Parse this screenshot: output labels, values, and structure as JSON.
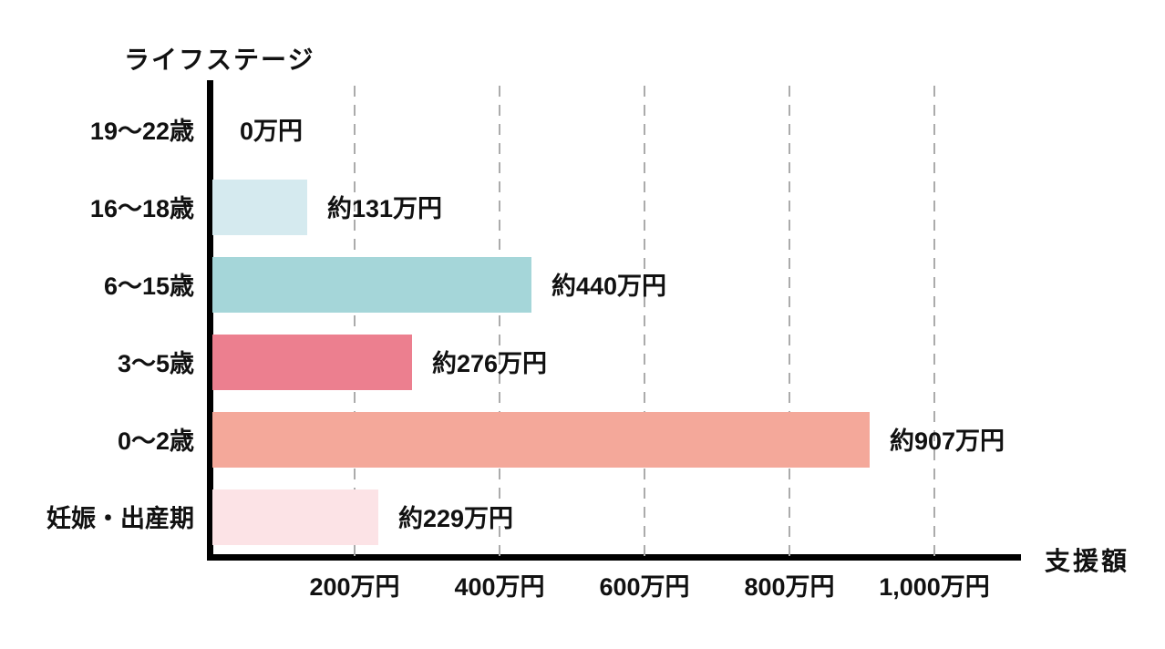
{
  "chart_data": {
    "type": "bar",
    "orientation": "horizontal",
    "title": "",
    "ylabel": "ライフステージ",
    "xlabel": "支援額",
    "categories": [
      "19〜22歳",
      "16〜18歳",
      "6〜15歳",
      "3〜5歳",
      "0〜2歳",
      "妊娠・出産期"
    ],
    "values": [
      0,
      131,
      440,
      276,
      907,
      229
    ],
    "value_labels": [
      "0万円",
      "約131万円",
      "約440万円",
      "約276万円",
      "約907万円",
      "約229万円"
    ],
    "bar_colors": [
      "none",
      "#d5eaef",
      "#a5d6d9",
      "#ec7f8f",
      "#f4a89a",
      "#fce3e6"
    ],
    "x_ticks": [
      200,
      400,
      600,
      800,
      1000
    ],
    "x_tick_labels": [
      "200万円",
      "400万円",
      "600万円",
      "800万円",
      "1,000万円"
    ],
    "xlim": [
      0,
      1115
    ],
    "unit": "万円",
    "grid": "vertical-dashed",
    "legend": "none"
  },
  "style": {
    "axis_color": "#000000",
    "gridline_color": "#ababab",
    "text_color": "#111111",
    "background": "#ffffff"
  }
}
